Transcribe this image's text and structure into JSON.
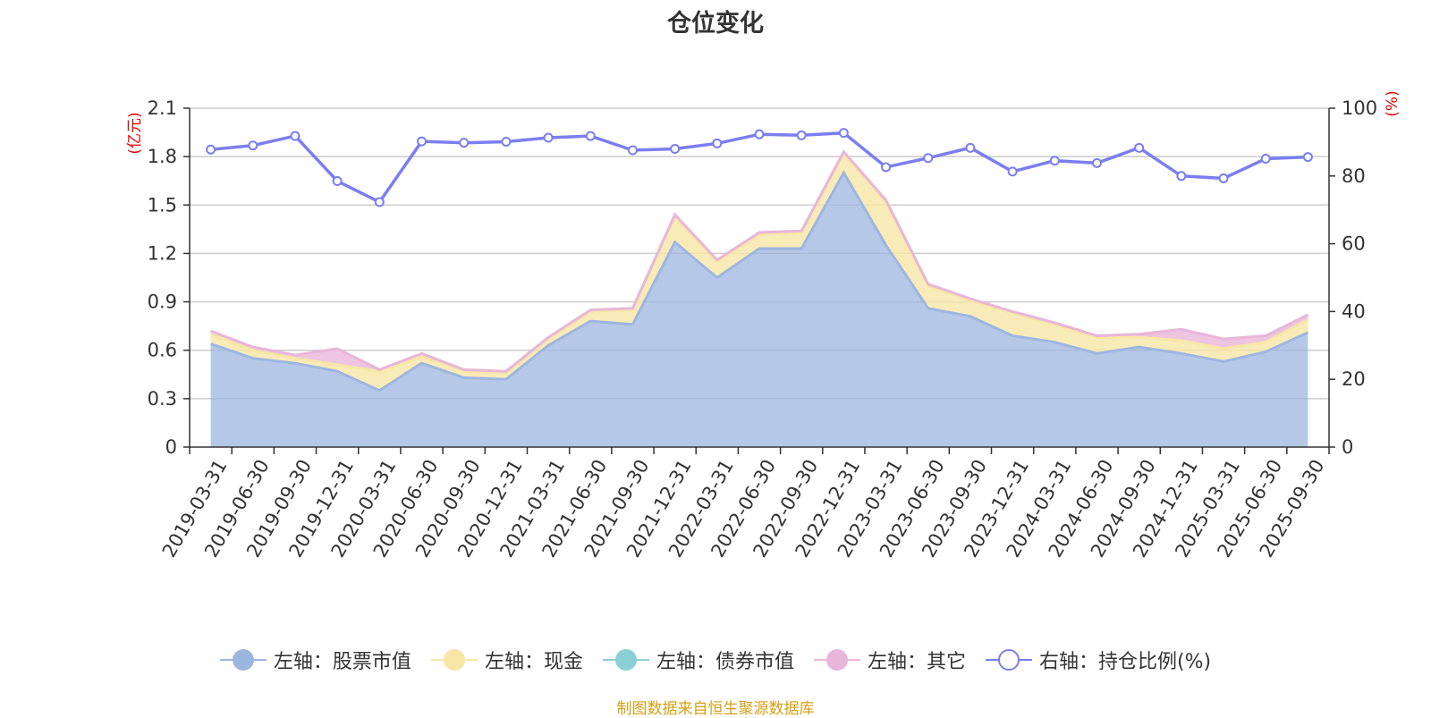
{
  "title": "仓位变化",
  "footer": "制图数据来自恒生聚源数据库",
  "colors": {
    "stock": "#9db6e0",
    "cash": "#f7e6a6",
    "bond": "#8ad0d6",
    "other": "#e8b6d9",
    "ratio": "#7b7ef0",
    "unit": "#e60000",
    "grid": "#cccccc",
    "axis": "#333333"
  },
  "legend": [
    {
      "label": "左轴：股票市值",
      "color": "#9db6e0",
      "hollow": false
    },
    {
      "label": "左轴：现金",
      "color": "#f7e6a6",
      "hollow": false
    },
    {
      "label": "左轴：债券市值",
      "color": "#8ad0d6",
      "hollow": false
    },
    {
      "label": "左轴：其它",
      "color": "#e8b6d9",
      "hollow": false
    },
    {
      "label": "右轴：持仓比例(%)",
      "color": "#7b7ef0",
      "hollow": true
    }
  ],
  "chart_data": {
    "type": "area",
    "title": "仓位变化",
    "x": [
      "2019-03-31",
      "2019-06-30",
      "2019-09-30",
      "2019-12-31",
      "2020-03-31",
      "2020-06-30",
      "2020-09-30",
      "2020-12-31",
      "2021-03-31",
      "2021-06-30",
      "2021-09-30",
      "2021-12-31",
      "2022-03-31",
      "2022-06-30",
      "2022-09-30",
      "2022-12-31",
      "2023-03-31",
      "2023-06-30",
      "2023-09-30",
      "2023-12-31",
      "2024-03-31",
      "2024-06-30",
      "2024-09-30",
      "2024-12-31",
      "2025-03-31",
      "2025-06-30",
      "2025-09-30"
    ],
    "left_axis": {
      "unit": "(亿元)",
      "ylim": [
        0,
        2.1
      ],
      "ticks": [
        "0",
        "0.3",
        "0.6",
        "0.9",
        "1.2",
        "1.5",
        "1.8",
        "2.1"
      ]
    },
    "right_axis": {
      "unit": "(%)",
      "ylim": [
        0,
        100
      ],
      "ticks": [
        "0",
        "20",
        "40",
        "60",
        "80",
        "100"
      ]
    },
    "stacked": true,
    "series": [
      {
        "name": "左轴：股票市值",
        "axis": "left",
        "values": [
          0.64,
          0.55,
          0.52,
          0.47,
          0.35,
          0.52,
          0.43,
          0.42,
          0.63,
          0.78,
          0.76,
          1.27,
          1.05,
          1.23,
          1.23,
          1.7,
          1.25,
          0.86,
          0.81,
          0.69,
          0.65,
          0.58,
          0.62,
          0.58,
          0.53,
          0.59,
          0.71
        ]
      },
      {
        "name": "左轴：现金",
        "axis": "left",
        "values": [
          0.06,
          0.05,
          0.03,
          0.04,
          0.12,
          0.04,
          0.04,
          0.04,
          0.04,
          0.06,
          0.09,
          0.16,
          0.1,
          0.09,
          0.1,
          0.12,
          0.27,
          0.14,
          0.1,
          0.14,
          0.11,
          0.1,
          0.06,
          0.08,
          0.08,
          0.06,
          0.08
        ]
      },
      {
        "name": "左轴：债券市值",
        "axis": "left",
        "values": [
          0,
          0,
          0,
          0,
          0,
          0,
          0,
          0,
          0,
          0,
          0,
          0,
          0,
          0,
          0,
          0,
          0,
          0,
          0,
          0,
          0,
          0,
          0,
          0,
          0,
          0,
          0
        ]
      },
      {
        "name": "左轴：其它",
        "axis": "left",
        "values": [
          0.02,
          0.02,
          0.02,
          0.1,
          0.01,
          0.02,
          0.01,
          0.01,
          0.01,
          0.01,
          0.01,
          0.01,
          0.01,
          0.01,
          0.01,
          0.01,
          0.01,
          0.01,
          0.01,
          0.01,
          0.01,
          0.01,
          0.02,
          0.07,
          0.06,
          0.04,
          0.03
        ]
      },
      {
        "name": "右轴：持仓比例(%)",
        "axis": "right",
        "type": "line",
        "values": [
          87.8,
          89.0,
          91.8,
          78.5,
          72.3,
          90.2,
          89.8,
          90.1,
          91.3,
          91.8,
          87.6,
          88.0,
          89.6,
          92.3,
          92.0,
          92.7,
          82.6,
          85.3,
          88.3,
          81.3,
          84.5,
          83.8,
          88.3,
          80.0,
          79.3,
          85.1,
          85.6
        ]
      }
    ],
    "grid": true,
    "legend_position": "bottom"
  }
}
